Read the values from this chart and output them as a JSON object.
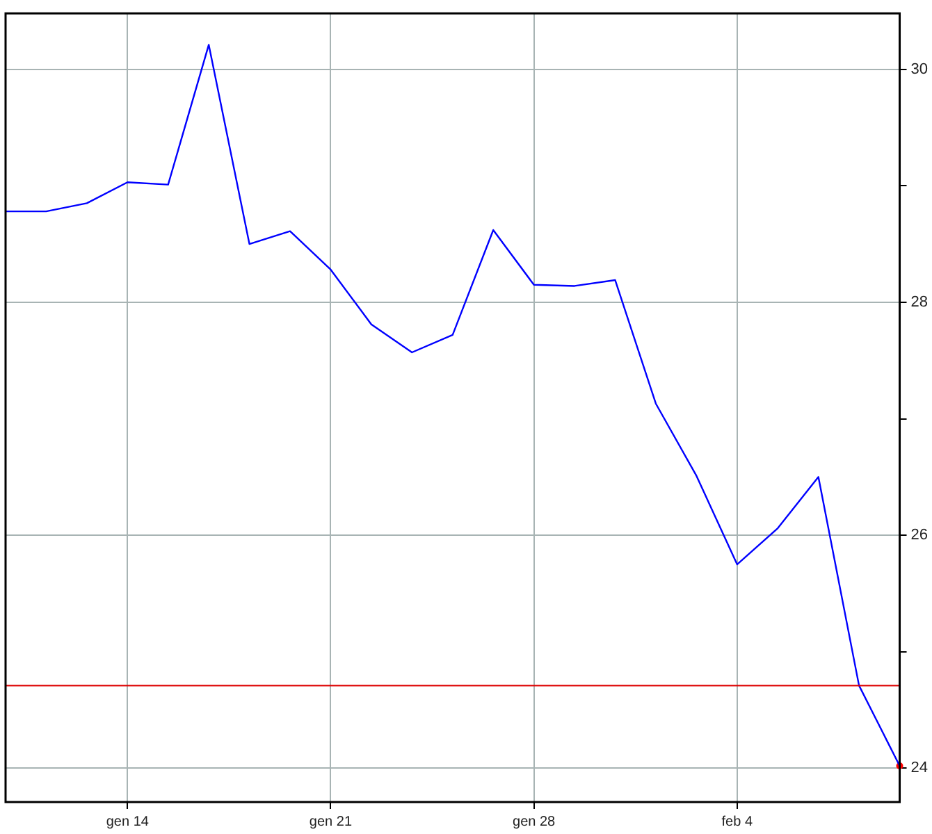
{
  "chart_data": {
    "type": "line",
    "categories": [
      null,
      null,
      null,
      "gen 14",
      null,
      null,
      null,
      null,
      "gen 21",
      null,
      null,
      null,
      null,
      "gen 28",
      null,
      null,
      null,
      null,
      "feb 4",
      null,
      null,
      null,
      null
    ],
    "series": [
      {
        "color": "#0000ff",
        "values": [
          28.78,
          28.78,
          28.85,
          29.03,
          29.01,
          30.21,
          28.5,
          28.61,
          28.28,
          27.81,
          27.57,
          27.72,
          28.62,
          28.15,
          28.14,
          28.19,
          27.13,
          26.51,
          25.75,
          26.06,
          26.5,
          24.71,
          24.02
        ]
      },
      {
        "type": "scatter",
        "color": "#ff0000",
        "values": [
          null,
          null,
          null,
          null,
          null,
          null,
          null,
          null,
          null,
          null,
          null,
          null,
          null,
          null,
          null,
          null,
          null,
          null,
          null,
          null,
          null,
          null,
          24.02
        ]
      }
    ],
    "ylim": [
      23.71,
      30.48
    ],
    "yticks": [
      24,
      {
        "value": 25,
        "label": null
      },
      26,
      {
        "value": 27,
        "label": null
      },
      28,
      {
        "value": 29,
        "label": null
      },
      30
    ],
    "ref_lines": [
      {
        "axis": "y",
        "value": 24.71,
        "color": "#dd0000"
      }
    ],
    "grid": true,
    "legend": false,
    "line_style": "solid"
  }
}
